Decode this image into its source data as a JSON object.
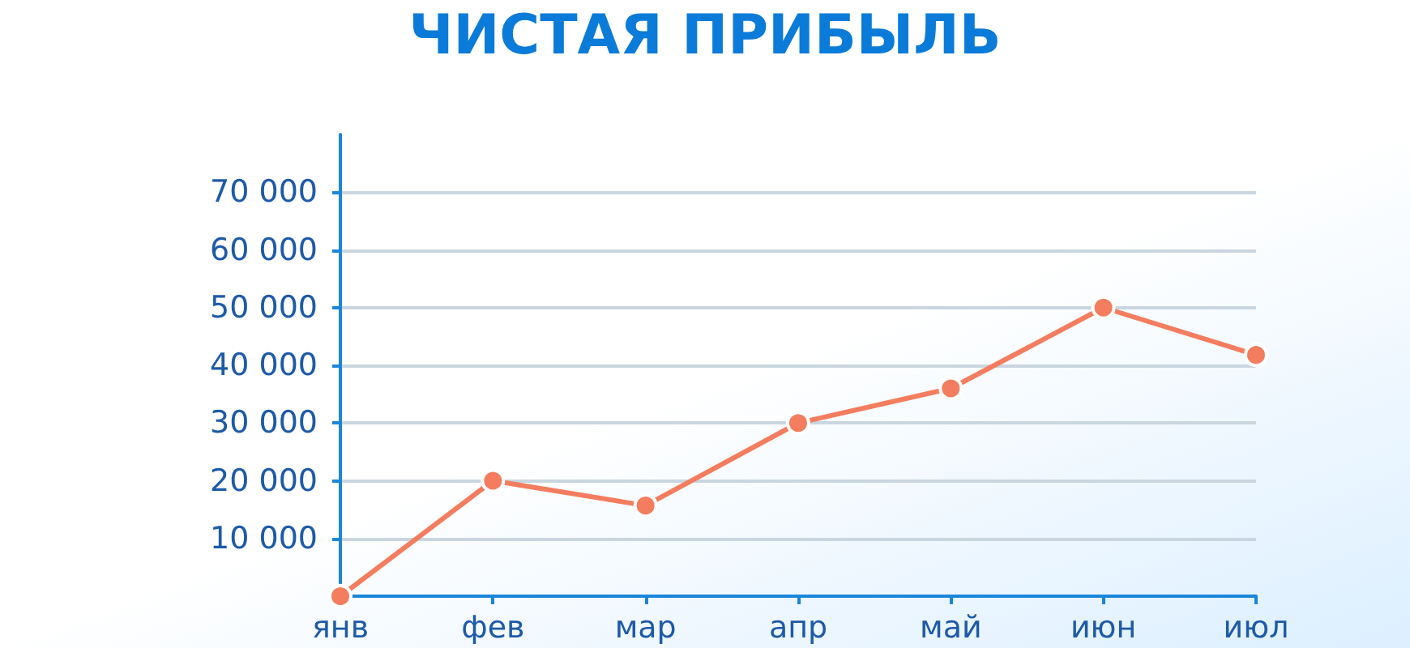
{
  "chart_data": {
    "type": "line",
    "title": "ЧИСТАЯ ПРИБЫЛЬ",
    "categories": [
      "янв",
      "фев",
      "мар",
      "апр",
      "май",
      "июн",
      "июл"
    ],
    "series": [
      {
        "color": "#f37d5e",
        "values": [
          0,
          20000,
          15700,
          30000,
          36000,
          50000,
          41800
        ]
      }
    ],
    "ylim": [
      0,
      80000
    ],
    "yticks": [
      {
        "value": 0,
        "label": null
      },
      {
        "value": 10000,
        "label": "10 000"
      },
      {
        "value": 20000,
        "label": "20 000"
      },
      {
        "value": 30000,
        "label": "30 000"
      },
      {
        "value": 40000,
        "label": "40 000"
      },
      {
        "value": 50000,
        "label": "50 000"
      },
      {
        "value": 60000,
        "label": "60 000"
      },
      {
        "value": 70000,
        "label": "70 000"
      }
    ],
    "grid": "y",
    "marker": "circle",
    "line_style": "solid"
  }
}
